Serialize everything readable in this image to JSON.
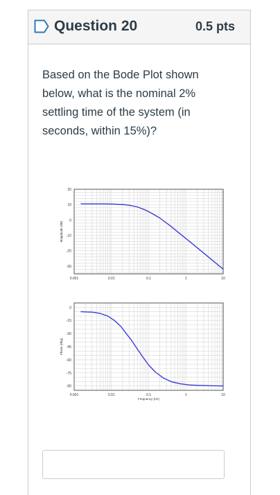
{
  "question": {
    "title": "Question 20",
    "points": "0.5 pts",
    "text": "Based on the Bode Plot shown below, what is the nominal 2% settling time of the system (in seconds, within 15%)?",
    "answer_value": ""
  },
  "colors": {
    "curve": "#3b3bd6",
    "grid": "#d6d6d6",
    "header_bg": "#f5f5f5",
    "flag": "#2b7abc"
  },
  "chart_data": [
    {
      "type": "line",
      "title": "",
      "ylabel": "Magnitude (dB)",
      "xlabel": "",
      "xscale": "log",
      "xlim": [
        0.001,
        10
      ],
      "ylim": [
        -35,
        20
      ],
      "yticks": [
        "20",
        "10",
        "0",
        "-10",
        "-20",
        "-30"
      ],
      "ytick_values": [
        20,
        10,
        0,
        -10,
        -20,
        -30
      ],
      "xticks": [
        "0.001",
        "0.01",
        "0.1",
        "1",
        "10"
      ],
      "xtick_values": [
        0.001,
        0.01,
        0.1,
        1,
        10
      ],
      "grid": true,
      "series": [
        {
          "x": [
            0.0015,
            0.003,
            0.006,
            0.01,
            0.02,
            0.03,
            0.05,
            0.08,
            0.12,
            0.2,
            0.4,
            0.8,
            1.5,
            3,
            6,
            10
          ],
          "y": [
            10.5,
            10.5,
            10.5,
            10.4,
            10.1,
            9.6,
            8.5,
            6.6,
            4.4,
            1.3,
            -4.2,
            -10.1,
            -15.5,
            -21.5,
            -27.5,
            -32
          ]
        }
      ]
    },
    {
      "type": "line",
      "title": "",
      "ylabel": "Phase (deg)",
      "xlabel": "Frequency (Hz)",
      "xscale": "log",
      "xlim": [
        0.001,
        10
      ],
      "ylim": [
        -95,
        5
      ],
      "yticks": [
        "0",
        "-15",
        "-30",
        "-45",
        "-60",
        "-75",
        "-90"
      ],
      "ytick_values": [
        0,
        -15,
        -30,
        -45,
        -60,
        -75,
        -90
      ],
      "xticks": [
        "0.001",
        "0.01",
        "0.1",
        "1",
        "10"
      ],
      "xtick_values": [
        0.001,
        0.01,
        0.1,
        1,
        10
      ],
      "grid": true,
      "series": [
        {
          "x": [
            0.0015,
            0.003,
            0.005,
            0.008,
            0.012,
            0.018,
            0.025,
            0.035,
            0.05,
            0.07,
            0.1,
            0.15,
            0.25,
            0.4,
            0.7,
            1.2,
            2,
            4,
            10
          ],
          "y": [
            -5,
            -5.5,
            -7,
            -10,
            -15,
            -22,
            -30,
            -38,
            -48,
            -57,
            -66,
            -74,
            -81,
            -85,
            -87.5,
            -88.8,
            -89.3,
            -89.7,
            -90
          ]
        }
      ]
    }
  ]
}
